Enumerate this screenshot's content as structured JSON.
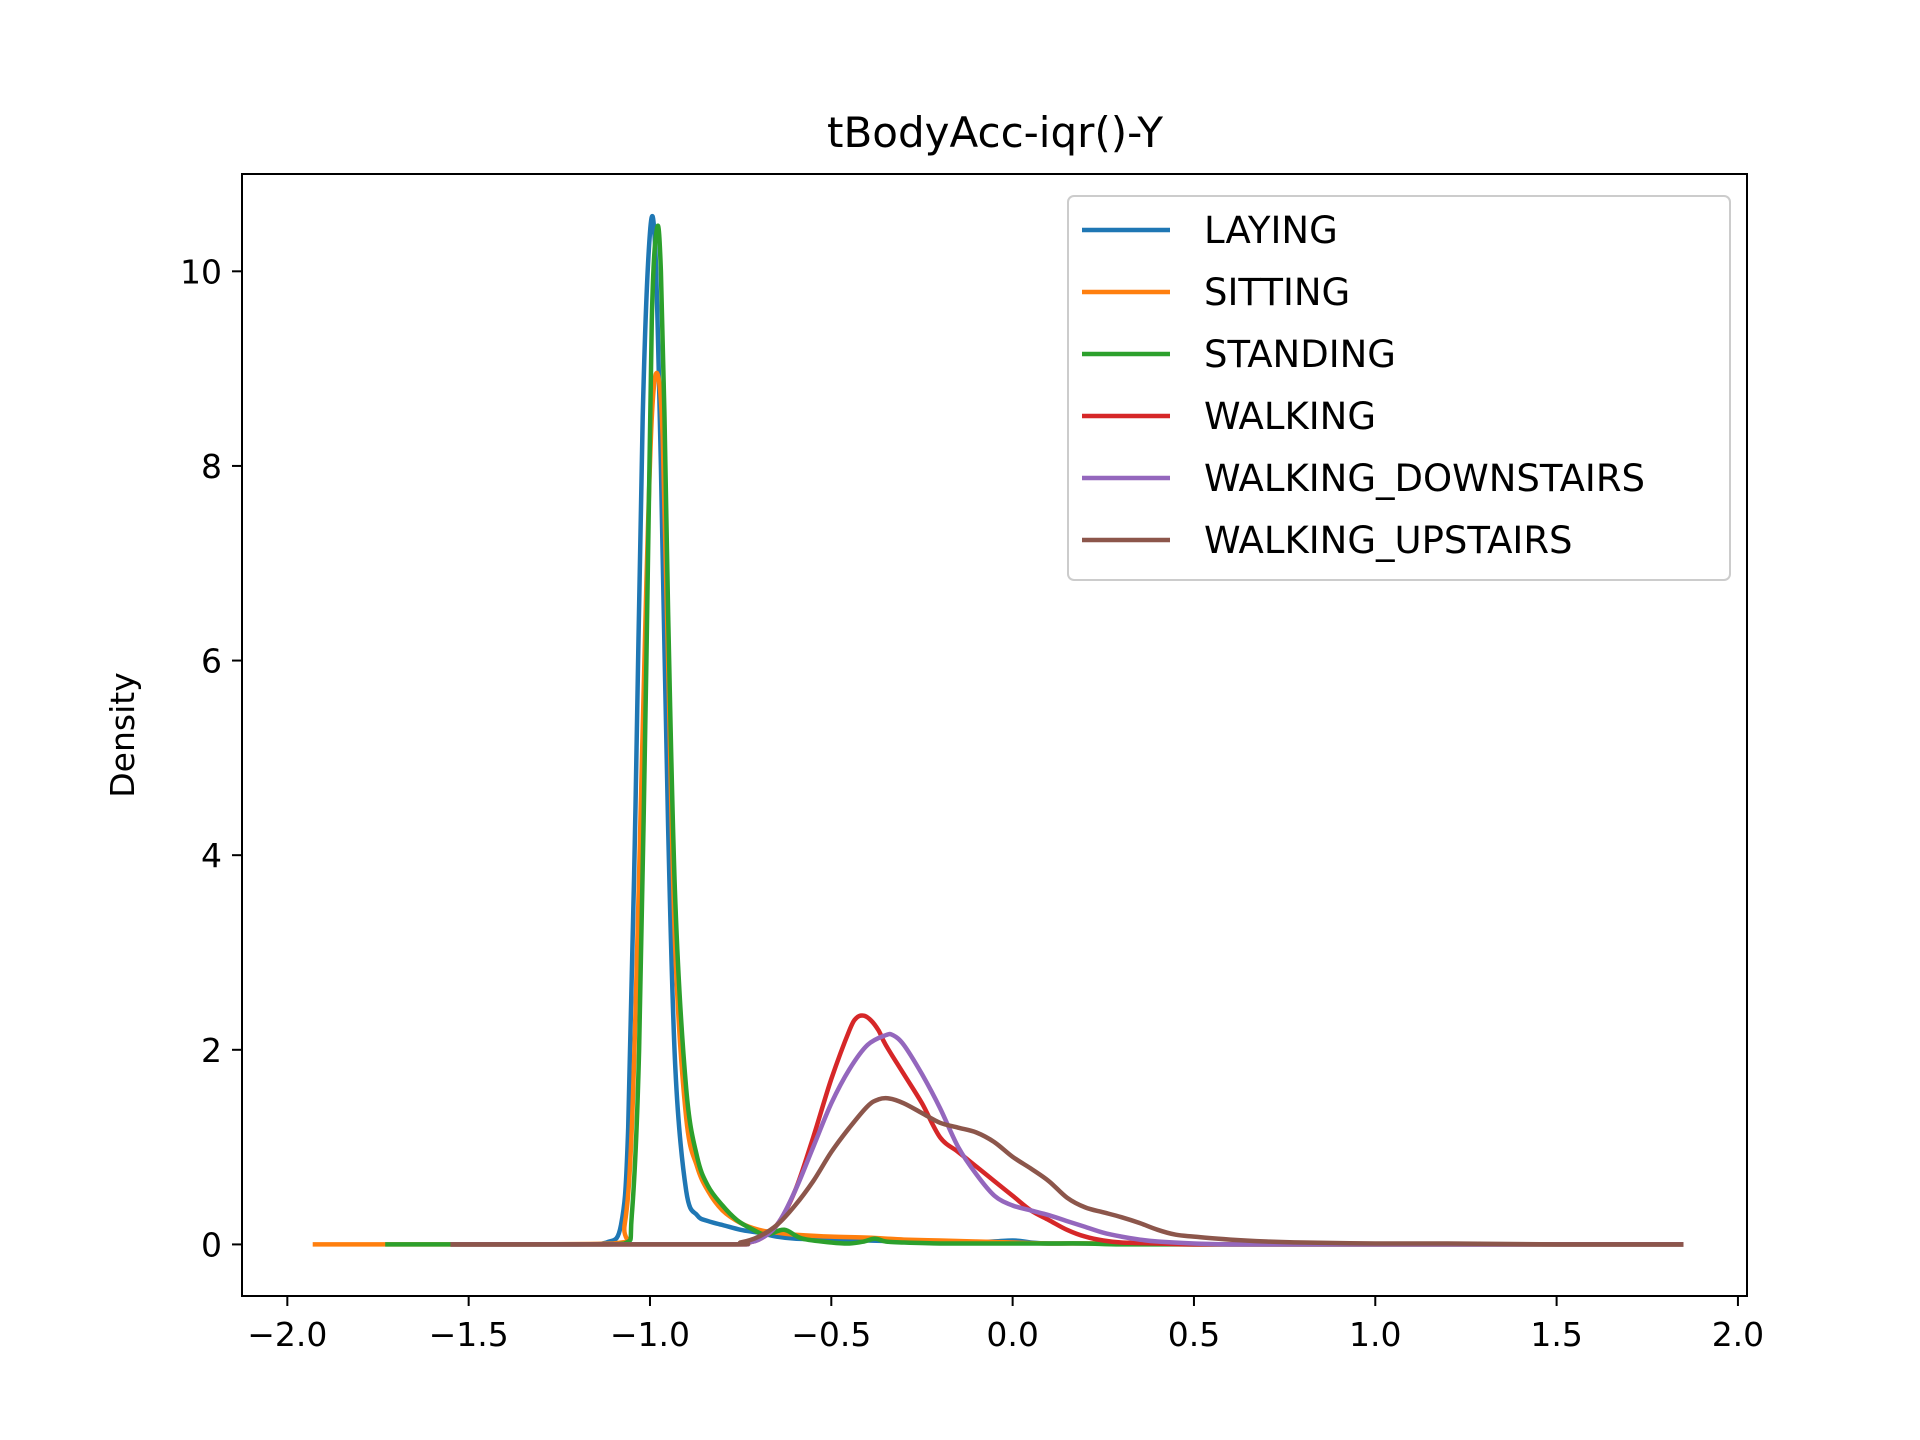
{
  "chart_data": {
    "type": "line",
    "title": "tBodyAcc-iqr()-Y",
    "xlabel": "",
    "ylabel": "Density",
    "xlim": [
      -2.125,
      2.025
    ],
    "ylim": [
      -0.53,
      11.0
    ],
    "x_ticks": [
      -2.0,
      -1.5,
      -1.0,
      -0.5,
      0.0,
      0.5,
      1.0,
      1.5,
      2.0
    ],
    "x_tick_labels": [
      "−2.0",
      "−1.5",
      "−1.0",
      "−0.5",
      "0.0",
      "0.5",
      "1.0",
      "1.5",
      "2.0"
    ],
    "y_ticks": [
      0,
      2,
      4,
      6,
      8,
      10
    ],
    "y_tick_labels": [
      "0",
      "2",
      "4",
      "6",
      "8",
      "10"
    ],
    "grid": false,
    "legend_position": "top-right",
    "series": [
      {
        "name": "LAYING",
        "color": "#1f77b4",
        "x": [
          -1.55,
          -1.2,
          -1.12,
          -1.08,
          -1.06,
          -1.04,
          -1.02,
          -1.0,
          -0.985,
          -0.97,
          -0.95,
          -0.93,
          -0.9,
          -0.87,
          -0.84,
          -0.8,
          -0.75,
          -0.7,
          -0.65,
          -0.6,
          -0.5,
          -0.4,
          -0.3,
          -0.2,
          -0.1,
          0.0,
          0.05,
          0.1,
          0.2,
          0.5,
          1.0,
          1.5,
          1.85
        ],
        "y": [
          0,
          0,
          0.02,
          0.2,
          1.2,
          4.5,
          8.5,
          10.4,
          10.2,
          8.0,
          4.3,
          1.8,
          0.55,
          0.3,
          0.24,
          0.2,
          0.15,
          0.12,
          0.08,
          0.06,
          0.05,
          0.04,
          0.03,
          0.02,
          0.02,
          0.04,
          0.02,
          0.01,
          0.01,
          0,
          0,
          0,
          0
        ]
      },
      {
        "name": "SITTING",
        "color": "#ff7f0e",
        "x": [
          -1.93,
          -1.5,
          -1.1,
          -1.07,
          -1.05,
          -1.03,
          -1.01,
          -0.995,
          -0.98,
          -0.965,
          -0.95,
          -0.93,
          -0.9,
          -0.87,
          -0.84,
          -0.8,
          -0.75,
          -0.7,
          -0.65,
          -0.6,
          -0.5,
          -0.4,
          -0.3,
          -0.2,
          -0.1,
          0.0,
          0.1,
          0.3,
          0.5,
          1.0,
          1.5,
          1.85
        ],
        "y": [
          0,
          0,
          0.01,
          0.2,
          1.2,
          3.8,
          6.8,
          8.5,
          8.95,
          8.3,
          6.0,
          3.0,
          1.3,
          0.8,
          0.55,
          0.35,
          0.22,
          0.15,
          0.12,
          0.1,
          0.08,
          0.07,
          0.05,
          0.04,
          0.03,
          0.02,
          0.01,
          0.01,
          0,
          0,
          0,
          0
        ]
      },
      {
        "name": "STANDING",
        "color": "#2ca02c",
        "x": [
          -1.73,
          -1.2,
          -1.07,
          -1.05,
          -1.03,
          -1.01,
          -0.995,
          -0.98,
          -0.97,
          -0.96,
          -0.95,
          -0.93,
          -0.9,
          -0.87,
          -0.84,
          -0.8,
          -0.76,
          -0.72,
          -0.68,
          -0.63,
          -0.58,
          -0.5,
          -0.45,
          -0.41,
          -0.38,
          -0.35,
          -0.3,
          -0.2,
          -0.1,
          0.0,
          0.1,
          0.2,
          0.3,
          0.5,
          1.0,
          1.5,
          1.85
        ],
        "y": [
          0,
          0,
          0.01,
          0.3,
          2.0,
          6.0,
          9.5,
          10.45,
          10.0,
          8.5,
          6.5,
          3.5,
          1.6,
          0.9,
          0.6,
          0.4,
          0.25,
          0.16,
          0.1,
          0.15,
          0.06,
          0.02,
          0.01,
          0.03,
          0.06,
          0.03,
          0.02,
          0.01,
          0.01,
          0.01,
          0.01,
          0.01,
          0,
          0,
          0,
          0,
          0
        ]
      },
      {
        "name": "WALKING",
        "color": "#d62728",
        "x": [
          -1.55,
          -0.8,
          -0.75,
          -0.7,
          -0.65,
          -0.6,
          -0.55,
          -0.5,
          -0.45,
          -0.43,
          -0.41,
          -0.39,
          -0.37,
          -0.35,
          -0.3,
          -0.25,
          -0.2,
          -0.15,
          -0.1,
          -0.05,
          0.0,
          0.05,
          0.1,
          0.15,
          0.2,
          0.25,
          0.3,
          0.4,
          0.5,
          0.7,
          1.0,
          1.5,
          1.85
        ],
        "y": [
          0,
          0,
          0.01,
          0.05,
          0.2,
          0.55,
          1.1,
          1.7,
          2.2,
          2.33,
          2.35,
          2.3,
          2.2,
          2.05,
          1.75,
          1.45,
          1.1,
          0.95,
          0.8,
          0.65,
          0.5,
          0.35,
          0.25,
          0.15,
          0.08,
          0.04,
          0.02,
          0.01,
          0,
          0,
          0,
          0,
          0
        ]
      },
      {
        "name": "WALKING_DOWNSTAIRS",
        "color": "#9467bd",
        "x": [
          -1.55,
          -0.8,
          -0.75,
          -0.7,
          -0.65,
          -0.6,
          -0.55,
          -0.5,
          -0.45,
          -0.4,
          -0.35,
          -0.33,
          -0.3,
          -0.25,
          -0.2,
          -0.15,
          -0.1,
          -0.05,
          0.0,
          0.05,
          0.1,
          0.15,
          0.2,
          0.25,
          0.3,
          0.35,
          0.4,
          0.5,
          0.6,
          0.8,
          1.0,
          1.5,
          1.85
        ],
        "y": [
          0,
          0,
          0.01,
          0.05,
          0.2,
          0.55,
          1.0,
          1.45,
          1.8,
          2.05,
          2.15,
          2.15,
          2.05,
          1.75,
          1.4,
          1.0,
          0.72,
          0.5,
          0.4,
          0.35,
          0.3,
          0.24,
          0.18,
          0.12,
          0.08,
          0.05,
          0.03,
          0.01,
          0,
          0,
          0,
          0,
          0
        ]
      },
      {
        "name": "WALKING_UPSTAIRS",
        "color": "#8c564b",
        "x": [
          -1.55,
          -0.8,
          -0.75,
          -0.7,
          -0.65,
          -0.6,
          -0.55,
          -0.5,
          -0.45,
          -0.4,
          -0.37,
          -0.34,
          -0.3,
          -0.25,
          -0.2,
          -0.15,
          -0.1,
          -0.05,
          0.0,
          0.05,
          0.1,
          0.15,
          0.2,
          0.25,
          0.3,
          0.35,
          0.4,
          0.45,
          0.5,
          0.6,
          0.7,
          0.8,
          1.0,
          1.2,
          1.5,
          1.85
        ],
        "y": [
          0,
          0,
          0.02,
          0.08,
          0.2,
          0.4,
          0.65,
          0.95,
          1.2,
          1.42,
          1.49,
          1.5,
          1.45,
          1.35,
          1.25,
          1.2,
          1.15,
          1.05,
          0.9,
          0.78,
          0.65,
          0.48,
          0.38,
          0.33,
          0.28,
          0.22,
          0.15,
          0.1,
          0.08,
          0.05,
          0.03,
          0.02,
          0.01,
          0.01,
          0,
          0
        ]
      }
    ]
  }
}
